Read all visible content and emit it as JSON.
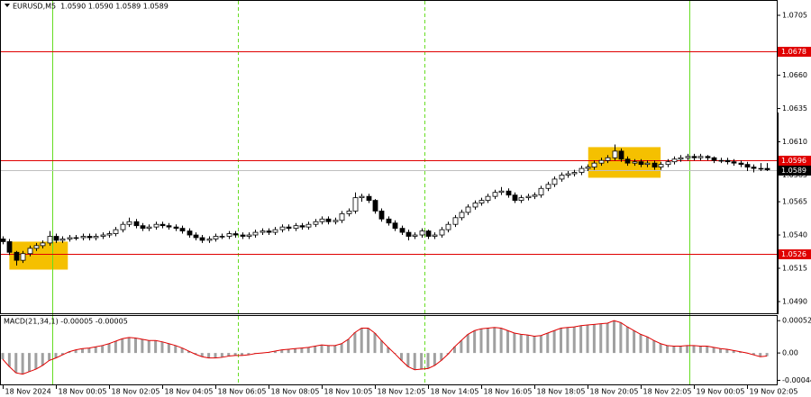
{
  "chart_data": [
    {
      "type": "candlestick",
      "header": "EURUSD,M5  1.0590 1.0590 1.0589 1.0589",
      "candles": [
        [
          1.0537,
          1.0539,
          1.0533,
          1.0535
        ],
        [
          1.0535,
          1.0537,
          1.0525,
          1.0527
        ],
        [
          1.0527,
          1.0528,
          1.0517,
          1.0521
        ],
        [
          1.0521,
          1.0528,
          1.0519,
          1.0526
        ],
        [
          1.0526,
          1.0532,
          1.0524,
          1.053
        ],
        [
          1.053,
          1.0534,
          1.0528,
          1.0532
        ],
        [
          1.0532,
          1.0536,
          1.053,
          1.0534
        ],
        [
          1.0534,
          1.0543,
          1.0532,
          1.0539
        ],
        [
          1.0539,
          1.0541,
          1.0534,
          1.0536
        ],
        [
          1.0536,
          1.0539,
          1.0534,
          1.0537
        ],
        [
          1.0537,
          1.054,
          1.0535,
          1.0538
        ],
        [
          1.0538,
          1.054,
          1.0536,
          1.0538
        ],
        [
          1.0538,
          1.0541,
          1.0536,
          1.0539
        ],
        [
          1.0539,
          1.0541,
          1.0536,
          1.0538
        ],
        [
          1.0538,
          1.0541,
          1.0536,
          1.0539
        ],
        [
          1.0539,
          1.0542,
          1.0537,
          1.054
        ],
        [
          1.054,
          1.0543,
          1.0538,
          1.0541
        ],
        [
          1.0541,
          1.0546,
          1.0539,
          1.0544
        ],
        [
          1.0544,
          1.055,
          1.0542,
          1.0548
        ],
        [
          1.0548,
          1.0553,
          1.0546,
          1.055
        ],
        [
          1.055,
          1.0552,
          1.0545,
          1.0547
        ],
        [
          1.0547,
          1.0549,
          1.0543,
          1.0545
        ],
        [
          1.0545,
          1.0548,
          1.0543,
          1.0546
        ],
        [
          1.0546,
          1.055,
          1.0544,
          1.0548
        ],
        [
          1.0548,
          1.055,
          1.0545,
          1.0547
        ],
        [
          1.0547,
          1.0549,
          1.0544,
          1.0546
        ],
        [
          1.0546,
          1.0548,
          1.0543,
          1.0545
        ],
        [
          1.0545,
          1.0547,
          1.0541,
          1.0543
        ],
        [
          1.0543,
          1.0545,
          1.0538,
          1.054
        ],
        [
          1.054,
          1.0542,
          1.0536,
          1.0538
        ],
        [
          1.0538,
          1.054,
          1.0534,
          1.0536
        ],
        [
          1.0536,
          1.0539,
          1.0534,
          1.0537
        ],
        [
          1.0537,
          1.0541,
          1.0535,
          1.0539
        ],
        [
          1.0539,
          1.0541,
          1.0537,
          1.0539
        ],
        [
          1.0539,
          1.0543,
          1.0537,
          1.0541
        ],
        [
          1.0541,
          1.0543,
          1.0538,
          1.054
        ],
        [
          1.054,
          1.0542,
          1.0537,
          1.0539
        ],
        [
          1.0539,
          1.0542,
          1.0537,
          1.054
        ],
        [
          1.054,
          1.0544,
          1.0538,
          1.0542
        ],
        [
          1.0542,
          1.0545,
          1.054,
          1.0543
        ],
        [
          1.0543,
          1.0545,
          1.054,
          1.0542
        ],
        [
          1.0542,
          1.0546,
          1.054,
          1.0544
        ],
        [
          1.0544,
          1.0548,
          1.0542,
          1.0546
        ],
        [
          1.0546,
          1.0548,
          1.0543,
          1.0545
        ],
        [
          1.0545,
          1.0549,
          1.0543,
          1.0547
        ],
        [
          1.0547,
          1.0549,
          1.0544,
          1.0546
        ],
        [
          1.0546,
          1.055,
          1.0544,
          1.0548
        ],
        [
          1.0548,
          1.0552,
          1.0546,
          1.055
        ],
        [
          1.055,
          1.0554,
          1.0548,
          1.0552
        ],
        [
          1.0552,
          1.0554,
          1.0548,
          1.055
        ],
        [
          1.055,
          1.0553,
          1.0548,
          1.0551
        ],
        [
          1.0551,
          1.0558,
          1.0549,
          1.0556
        ],
        [
          1.0556,
          1.056,
          1.0554,
          1.0558
        ],
        [
          1.0558,
          1.0572,
          1.0556,
          1.0568
        ],
        [
          1.0568,
          1.0571,
          1.0565,
          1.0569
        ],
        [
          1.0569,
          1.0571,
          1.0564,
          1.0566
        ],
        [
          1.0566,
          1.0567,
          1.0556,
          1.0558
        ],
        [
          1.0558,
          1.056,
          1.055,
          1.0552
        ],
        [
          1.0552,
          1.0554,
          1.0547,
          1.0549
        ],
        [
          1.0549,
          1.0551,
          1.0543,
          1.0545
        ],
        [
          1.0545,
          1.0547,
          1.054,
          1.0542
        ],
        [
          1.0542,
          1.0544,
          1.0536,
          1.0539
        ],
        [
          1.0539,
          1.0542,
          1.0537,
          1.054
        ],
        [
          1.054,
          1.0545,
          1.0538,
          1.0543
        ],
        [
          1.0543,
          1.0544,
          1.0537,
          1.0539
        ],
        [
          1.0539,
          1.0542,
          1.0537,
          1.054
        ],
        [
          1.054,
          1.0546,
          1.0538,
          1.0544
        ],
        [
          1.0544,
          1.055,
          1.0542,
          1.0548
        ],
        [
          1.0548,
          1.0555,
          1.0546,
          1.0553
        ],
        [
          1.0553,
          1.0559,
          1.0551,
          1.0557
        ],
        [
          1.0557,
          1.0563,
          1.0555,
          1.0561
        ],
        [
          1.0561,
          1.0566,
          1.0559,
          1.0564
        ],
        [
          1.0564,
          1.0568,
          1.0562,
          1.0566
        ],
        [
          1.0566,
          1.0571,
          1.0564,
          1.0569
        ],
        [
          1.0569,
          1.0574,
          1.0567,
          1.0572
        ],
        [
          1.0572,
          1.0576,
          1.057,
          1.0573
        ],
        [
          1.0573,
          1.0575,
          1.0568,
          1.057
        ],
        [
          1.057,
          1.0572,
          1.0564,
          1.0566
        ],
        [
          1.0566,
          1.057,
          1.0564,
          1.0568
        ],
        [
          1.0568,
          1.0571,
          1.0566,
          1.0569
        ],
        [
          1.0569,
          1.0572,
          1.0567,
          1.057
        ],
        [
          1.057,
          1.0577,
          1.0568,
          1.0575
        ],
        [
          1.0575,
          1.058,
          1.0573,
          1.0578
        ],
        [
          1.0578,
          1.0584,
          1.0576,
          1.0582
        ],
        [
          1.0582,
          1.0587,
          1.058,
          1.0585
        ],
        [
          1.0585,
          1.0588,
          1.0583,
          1.0586
        ],
        [
          1.0586,
          1.0589,
          1.0584,
          1.0587
        ],
        [
          1.0587,
          1.0592,
          1.0585,
          1.059
        ],
        [
          1.059,
          1.0593,
          1.0588,
          1.0591
        ],
        [
          1.0591,
          1.0596,
          1.0589,
          1.0594
        ],
        [
          1.0594,
          1.0598,
          1.0592,
          1.0596
        ],
        [
          1.0596,
          1.06,
          1.0594,
          1.0598
        ],
        [
          1.0598,
          1.0608,
          1.0596,
          1.0603
        ],
        [
          1.0603,
          1.0605,
          1.0595,
          1.0597
        ],
        [
          1.0597,
          1.0599,
          1.0592,
          1.0594
        ],
        [
          1.0594,
          1.0597,
          1.0592,
          1.0595
        ],
        [
          1.0595,
          1.0597,
          1.0591,
          1.0593
        ],
        [
          1.0593,
          1.0596,
          1.0591,
          1.0594
        ],
        [
          1.0594,
          1.0596,
          1.0589,
          1.0591
        ],
        [
          1.0591,
          1.0595,
          1.0589,
          1.0593
        ],
        [
          1.0593,
          1.0597,
          1.0591,
          1.0595
        ],
        [
          1.0595,
          1.0599,
          1.0593,
          1.0597
        ],
        [
          1.0597,
          1.06,
          1.0595,
          1.0598
        ],
        [
          1.0598,
          1.0601,
          1.0596,
          1.0599
        ],
        [
          1.0599,
          1.0601,
          1.0596,
          1.0598
        ],
        [
          1.0598,
          1.0601,
          1.0596,
          1.0599
        ],
        [
          1.0599,
          1.06,
          1.0596,
          1.0598
        ],
        [
          1.0598,
          1.0599,
          1.0594,
          1.0596
        ],
        [
          1.0596,
          1.0598,
          1.0594,
          1.0596
        ],
        [
          1.0596,
          1.0598,
          1.0593,
          1.0595
        ],
        [
          1.0595,
          1.0597,
          1.0592,
          1.0594
        ],
        [
          1.0594,
          1.0596,
          1.0591,
          1.0593
        ],
        [
          1.0593,
          1.0595,
          1.0588,
          1.0591
        ],
        [
          1.0591,
          1.0593,
          1.0587,
          1.059
        ],
        [
          1.059,
          1.0594,
          1.0588,
          1.059
        ],
        [
          1.059,
          1.0594,
          1.0588,
          1.0589
        ]
      ],
      "up_color": "#ffffff",
      "down_color": "#000000",
      "ylim": [
        1.04812,
        1.07165
      ],
      "yticks": [
        1.0705,
        {
          "value": 1.066,
          "label": "1.0660"
        },
        1.0635,
        {
          "value": 1.061,
          "label": "1.0610"
        },
        1.0585,
        1.0565,
        {
          "value": 1.054,
          "label": "1.0540"
        },
        1.0515,
        {
          "value": 1.049,
          "label": "1.0490"
        }
      ],
      "xticks": [
        {
          "value": 0,
          "label": "18 Nov 2024"
        },
        {
          "value": 8,
          "label": "18 Nov 00:05"
        },
        {
          "value": 16,
          "label": "18 Nov 02:05"
        },
        {
          "value": 24,
          "label": "18 Nov 04:05"
        },
        {
          "value": 32,
          "label": "18 Nov 06:05"
        },
        {
          "value": 40,
          "label": "18 Nov 08:05"
        },
        {
          "value": 48,
          "label": "18 Nov 10:05"
        },
        {
          "value": 56,
          "label": "18 Nov 12:05"
        },
        {
          "value": 64,
          "label": "18 Nov 14:05"
        },
        {
          "value": 72,
          "label": "18 Nov 16:05"
        },
        {
          "value": 80,
          "label": "18 Nov 18:05"
        },
        {
          "value": 88,
          "label": "18 Nov 20:05"
        },
        {
          "value": 96,
          "label": "18 Nov 22:05"
        },
        {
          "value": 104,
          "label": "19 Nov 00:05"
        },
        {
          "value": 112,
          "label": "19 Nov 02:05"
        }
      ],
      "hlines": [
        {
          "value": 1.0678,
          "color": "#e00000"
        },
        {
          "value": 1.0596,
          "color": "#e00000"
        },
        {
          "value": 1.0526,
          "color": "#e00000"
        }
      ],
      "current_price": {
        "value": 1.0589,
        "color": "#000000"
      },
      "vlines": [
        {
          "x": 7.5,
          "color": "#66dd22",
          "dashed": false
        },
        {
          "x": 35.4,
          "color": "#66dd22",
          "dashed": true
        },
        {
          "x": 63.4,
          "color": "#66dd22",
          "dashed": true
        },
        {
          "x": 103.3,
          "color": "#66dd22",
          "dashed": false
        }
      ],
      "boxes": [
        {
          "x": [
            1,
            9.8
          ],
          "y": [
            1.0514,
            1.0535
          ],
          "color": "#f5c000"
        },
        {
          "x": [
            88.1,
            99
          ],
          "y": [
            1.0583,
            1.0606
          ],
          "color": "#f5c000"
        }
      ]
    },
    {
      "type": "macd",
      "header": "MACD(21,34,1) -0.00005 -0.00005",
      "values": [
        -0.0001,
        -0.00022,
        -0.00032,
        -0.00034,
        -0.0003,
        -0.00026,
        -0.0002,
        -0.00012,
        -8e-05,
        -3e-05,
        2e-05,
        5e-05,
        7e-05,
        8e-05,
        0.0001,
        0.00012,
        0.00015,
        0.00019,
        0.00023,
        0.00025,
        0.00024,
        0.00022,
        0.0002,
        0.0002,
        0.00018,
        0.00015,
        0.00012,
        8e-05,
        3e-05,
        -2e-05,
        -6e-05,
        -8e-05,
        -8e-05,
        -7e-05,
        -5e-05,
        -4e-05,
        -4e-05,
        -3e-05,
        -1e-05,
        0,
        1e-05,
        3e-05,
        5e-05,
        6e-05,
        7e-05,
        8e-05,
        9e-05,
        0.00011,
        0.00013,
        0.00012,
        0.00012,
        0.00015,
        0.00022,
        0.00033,
        0.0004,
        0.0004,
        0.00032,
        0.0002,
        9e-05,
        -1e-05,
        -0.00012,
        -0.00022,
        -0.00027,
        -0.00026,
        -0.00025,
        -0.0002,
        -0.00012,
        -2e-05,
        0.0001,
        0.0002,
        0.0003,
        0.00036,
        0.00039,
        0.0004,
        0.00041,
        0.0004,
        0.00036,
        0.00032,
        0.0003,
        0.00029,
        0.00027,
        0.00028,
        0.00032,
        0.00036,
        0.0004,
        0.00041,
        0.00042,
        0.00044,
        0.00045,
        0.00046,
        0.00047,
        0.00048,
        0.00052,
        0.00049,
        0.00042,
        0.00036,
        0.0003,
        0.00026,
        0.0002,
        0.00015,
        0.00012,
        0.00011,
        0.00011,
        0.00012,
        0.00012,
        0.00011,
        0.00011,
        9e-05,
        7e-05,
        6e-05,
        4e-05,
        2e-05,
        0,
        -3e-05,
        -6e-05,
        -5e-05
      ],
      "color": "#a0a0a0",
      "line_color": "#e00000",
      "ylim": [
        -0.00052,
        0.00061
      ],
      "yticks": [
        0.00052,
        {
          "value": 0,
          "label": "0.00"
        },
        -0.00044
      ]
    }
  ]
}
